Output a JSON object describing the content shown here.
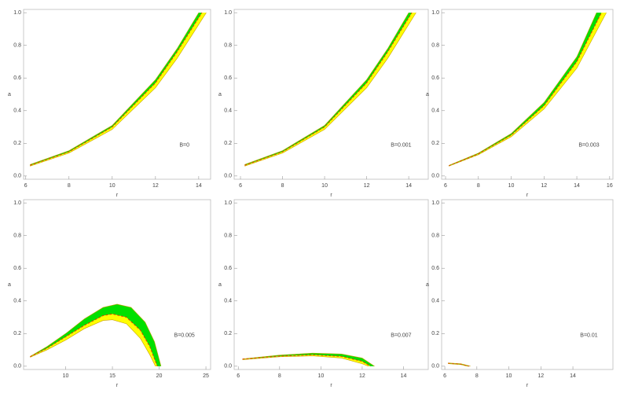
{
  "chart_data": [
    {
      "type": "band",
      "annotation": "B=0",
      "xlabel": "r",
      "ylabel": "a",
      "xlim": [
        5.9,
        14.55
      ],
      "xticks": [
        6,
        8,
        10,
        12,
        14
      ],
      "ylim": [
        -0.02,
        1.02
      ],
      "yticks": [
        {
          "value": 0,
          "label": "0.0"
        },
        0.2,
        0.4,
        0.6,
        0.8,
        {
          "value": 1,
          "label": "1.0"
        }
      ],
      "series": [
        {
          "color": "#00e000",
          "x": [
            6.2,
            8,
            10,
            12,
            13,
            14
          ],
          "values": [
            0.07,
            0.155,
            0.31,
            0.59,
            0.78,
            1.0
          ]
        },
        {
          "color": "#e04000",
          "dashed": true,
          "x": [
            6.2,
            8,
            10,
            12,
            13,
            14.15
          ],
          "values": [
            0.065,
            0.148,
            0.3,
            0.57,
            0.76,
            1.0
          ]
        },
        {
          "color": "#ffff00",
          "x": [
            6.2,
            8,
            10,
            12,
            13,
            14.35
          ],
          "values": [
            0.06,
            0.14,
            0.285,
            0.54,
            0.72,
            1.0
          ]
        }
      ]
    },
    {
      "type": "band",
      "annotation": "B=0.001",
      "xlabel": "r",
      "ylabel": "a",
      "xlim": [
        5.7,
        14.93
      ],
      "xticks": [
        6,
        8,
        10,
        12,
        14
      ],
      "ylim": [
        -0.02,
        1.02
      ],
      "yticks": [
        {
          "value": 0,
          "label": "0.0"
        },
        0.2,
        0.4,
        0.6,
        0.8,
        {
          "value": 1,
          "label": "1.0"
        }
      ],
      "series": [
        {
          "color": "#00e000",
          "x": [
            6.2,
            8,
            10,
            12,
            13,
            14
          ],
          "values": [
            0.07,
            0.155,
            0.31,
            0.59,
            0.78,
            1.0
          ]
        },
        {
          "color": "#e04000",
          "dashed": true,
          "x": [
            6.2,
            8,
            10,
            12,
            13,
            14.15
          ],
          "values": [
            0.065,
            0.148,
            0.3,
            0.57,
            0.76,
            1.0
          ]
        },
        {
          "color": "#ffff00",
          "x": [
            6.2,
            8,
            10,
            12,
            13,
            14.35
          ],
          "values": [
            0.06,
            0.14,
            0.285,
            0.54,
            0.72,
            1.0
          ]
        }
      ]
    },
    {
      "type": "band",
      "annotation": "B=0.003",
      "xlabel": "r",
      "ylabel": "a",
      "xlim": [
        5.76,
        16.2
      ],
      "xticks": [
        6,
        8,
        10,
        12,
        14,
        16
      ],
      "ylim": [
        -0.02,
        1.02
      ],
      "yticks": [
        {
          "value": 0,
          "label": "0.0"
        },
        0.2,
        0.4,
        0.6,
        0.8,
        {
          "value": 1,
          "label": "1.0"
        }
      ],
      "series": [
        {
          "color": "#00e000",
          "x": [
            6.2,
            8,
            10,
            12,
            14,
            15.2
          ],
          "values": [
            0.065,
            0.14,
            0.26,
            0.45,
            0.73,
            1.0
          ]
        },
        {
          "color": "#e04000",
          "dashed": true,
          "x": [
            6.2,
            8,
            10,
            12,
            14,
            15.5
          ],
          "values": [
            0.062,
            0.135,
            0.25,
            0.43,
            0.7,
            1.0
          ]
        },
        {
          "color": "#ffff00",
          "x": [
            6.2,
            8,
            10,
            12,
            14,
            15.8
          ],
          "values": [
            0.06,
            0.13,
            0.24,
            0.41,
            0.66,
            1.0
          ]
        }
      ]
    },
    {
      "type": "band",
      "annotation": "B=0.005",
      "xlabel": "r",
      "ylabel": "a",
      "xlim": [
        5.5,
        25.5
      ],
      "xticks": [
        10,
        15,
        20,
        25
      ],
      "ylim": [
        -0.02,
        1.02
      ],
      "yticks": [
        {
          "value": 0,
          "label": "0.0"
        },
        0.2,
        0.4,
        0.6,
        0.8,
        {
          "value": 1,
          "label": "1.0"
        }
      ],
      "series": [
        {
          "color": "#00e000",
          "x": [
            6.2,
            8,
            10,
            12,
            14,
            15.5,
            17,
            18.5,
            19.5,
            20.2
          ],
          "values": [
            0.06,
            0.12,
            0.2,
            0.29,
            0.36,
            0.38,
            0.36,
            0.27,
            0.15,
            0
          ]
        },
        {
          "color": "#e04000",
          "dashed": true,
          "x": [
            6.2,
            8,
            10,
            12,
            14,
            15,
            16.5,
            18,
            19,
            19.8
          ],
          "values": [
            0.058,
            0.11,
            0.18,
            0.25,
            0.31,
            0.32,
            0.3,
            0.22,
            0.12,
            0
          ]
        },
        {
          "color": "#ffff00",
          "x": [
            6.2,
            8,
            10,
            12,
            14,
            15,
            16.5,
            18,
            19,
            19.6
          ],
          "values": [
            0.055,
            0.1,
            0.16,
            0.23,
            0.28,
            0.285,
            0.26,
            0.17,
            0.07,
            0
          ]
        }
      ]
    },
    {
      "type": "band",
      "annotation": "B=0.007",
      "xlabel": "r",
      "ylabel": "a",
      "xlim": [
        5.8,
        15.2
      ],
      "xticks": [
        6,
        8,
        10,
        12,
        14
      ],
      "ylim": [
        -0.02,
        1.02
      ],
      "yticks": [
        {
          "value": 0,
          "label": "0.0"
        },
        0.2,
        0.4,
        0.6,
        0.8,
        {
          "value": 1,
          "label": "1.0"
        }
      ],
      "series": [
        {
          "color": "#00e000",
          "x": [
            6.2,
            8,
            9.6,
            11,
            12,
            12.6
          ],
          "values": [
            0.045,
            0.068,
            0.08,
            0.075,
            0.05,
            0
          ]
        },
        {
          "color": "#e04000",
          "dashed": true,
          "x": [
            6.2,
            8,
            9.6,
            11,
            12,
            12.4
          ],
          "values": [
            0.043,
            0.062,
            0.07,
            0.06,
            0.03,
            0
          ]
        },
        {
          "color": "#ffff00",
          "x": [
            6.2,
            8,
            9.6,
            11,
            12,
            12.3
          ],
          "values": [
            0.04,
            0.058,
            0.063,
            0.05,
            0.015,
            0
          ]
        }
      ]
    },
    {
      "type": "band",
      "annotation": "B=0.01",
      "xlabel": "r",
      "ylabel": "a",
      "xlim": [
        5.8,
        16.5
      ],
      "xticks": [
        6,
        8,
        10,
        12,
        14
      ],
      "ylim": [
        -0.02,
        1.02
      ],
      "yticks": [
        {
          "value": 0,
          "label": "0.0"
        },
        0.2,
        0.4,
        0.6,
        0.8,
        {
          "value": 1,
          "label": "1.0"
        }
      ],
      "series": [
        {
          "color": "#00e000",
          "x": [
            6.2,
            7,
            7.6
          ],
          "values": [
            0.02,
            0.015,
            0
          ]
        },
        {
          "color": "#e04000",
          "dashed": true,
          "x": [
            6.2,
            7,
            7.5
          ],
          "values": [
            0.018,
            0.012,
            0
          ]
        },
        {
          "color": "#ffff00",
          "x": [
            6.2,
            7,
            7.4
          ],
          "values": [
            0.016,
            0.01,
            0
          ]
        }
      ]
    }
  ]
}
